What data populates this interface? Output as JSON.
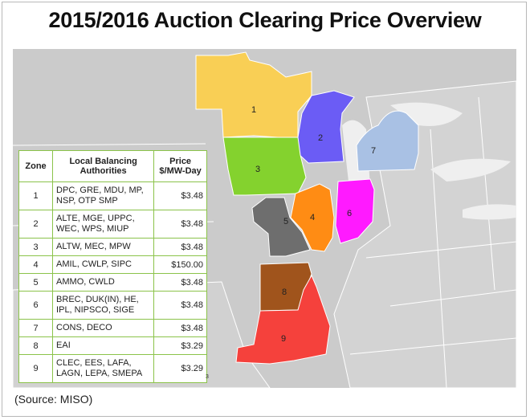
{
  "title": "2015/2016 Auction Clearing Price Overview",
  "source": "(Source: MISO)",
  "footnote": "3",
  "table": {
    "headers": {
      "zone": "Zone",
      "authorities": "Local Balancing Authorities",
      "price": "Price $/MW-Day"
    },
    "rows": [
      {
        "zone": "1",
        "authorities": "DPC, GRE, MDU, MP, NSP, OTP SMP",
        "price": "$3.48"
      },
      {
        "zone": "2",
        "authorities": "ALTE, MGE, UPPC, WEC, WPS, MIUP",
        "price": "$3.48"
      },
      {
        "zone": "3",
        "authorities": "ALTW, MEC, MPW",
        "price": "$3.48"
      },
      {
        "zone": "4",
        "authorities": "AMIL, CWLP, SIPC",
        "price": "$150.00"
      },
      {
        "zone": "5",
        "authorities": "AMMO, CWLD",
        "price": "$3.48"
      },
      {
        "zone": "6",
        "authorities": "BREC, DUK(IN), HE, IPL, NIPSCO, SIGE",
        "price": "$3.48"
      },
      {
        "zone": "7",
        "authorities": "CONS, DECO",
        "price": "$3.48"
      },
      {
        "zone": "8",
        "authorities": "EAI",
        "price": "$3.29"
      },
      {
        "zone": "9",
        "authorities": "CLEC, EES, LAFA, LAGN, LEPA, SMEPA",
        "price": "$3.29"
      }
    ]
  },
  "map": {
    "zones": [
      {
        "label": "1",
        "color": "#f9cf55"
      },
      {
        "label": "2",
        "color": "#6b5cf5"
      },
      {
        "label": "3",
        "color": "#84d22e"
      },
      {
        "label": "4",
        "color": "#ff8c14"
      },
      {
        "label": "5",
        "color": "#6e6e6e"
      },
      {
        "label": "6",
        "color": "#ff1aff"
      },
      {
        "label": "7",
        "color": "#a9c1e4"
      },
      {
        "label": "8",
        "color": "#a0541c"
      },
      {
        "label": "9",
        "color": "#f5413c"
      }
    ],
    "background_color": "#c9c9c9",
    "state_color": "#d6d6d6",
    "lake_color": "#eeeeee"
  }
}
